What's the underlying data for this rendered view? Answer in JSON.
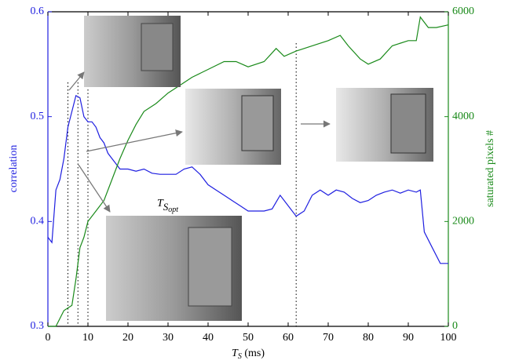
{
  "chart_data": {
    "type": "line",
    "xlabel": {
      "main": "T",
      "sub": "S",
      "rest": " (ms)"
    },
    "ylabel": "correlation",
    "y2label": "saturated pixels #",
    "annotation": {
      "main": "T",
      "sub": "S",
      "subsub": "opt"
    },
    "xlim": [
      0,
      100
    ],
    "xticks": [
      0,
      10,
      20,
      30,
      40,
      50,
      60,
      70,
      80,
      90,
      100
    ],
    "ylim": [
      0.3,
      0.6
    ],
    "yticks": [
      0.3,
      0.4,
      0.5,
      0.6
    ],
    "y2lim": [
      0,
      6000
    ],
    "y2ticks": [
      0,
      2000,
      4000,
      6000
    ],
    "vlines": [
      5,
      7.5,
      10,
      62
    ],
    "series": [
      {
        "name": "correlation",
        "color": "#1f1fe0",
        "x": [
          0,
          1,
          2,
          3,
          4,
          5,
          6,
          7,
          8,
          9,
          10,
          11,
          12,
          13,
          14,
          15,
          16,
          17,
          18,
          20,
          22,
          24,
          26,
          28,
          30,
          32,
          34,
          36,
          38,
          40,
          42,
          44,
          46,
          48,
          50,
          52,
          54,
          56,
          58,
          60,
          62,
          64,
          66,
          68,
          70,
          72,
          74,
          76,
          78,
          80,
          82,
          84,
          86,
          88,
          90,
          92,
          93,
          94,
          96,
          98,
          100
        ],
        "values": [
          0.385,
          0.38,
          0.43,
          0.44,
          0.46,
          0.49,
          0.505,
          0.52,
          0.518,
          0.5,
          0.495,
          0.495,
          0.49,
          0.48,
          0.475,
          0.465,
          0.46,
          0.455,
          0.45,
          0.45,
          0.448,
          0.45,
          0.446,
          0.445,
          0.445,
          0.445,
          0.45,
          0.452,
          0.445,
          0.435,
          0.43,
          0.425,
          0.42,
          0.415,
          0.41,
          0.41,
          0.41,
          0.412,
          0.425,
          0.415,
          0.405,
          0.41,
          0.425,
          0.43,
          0.425,
          0.43,
          0.428,
          0.422,
          0.418,
          0.42,
          0.425,
          0.428,
          0.43,
          0.427,
          0.43,
          0.428,
          0.43,
          0.39,
          0.375,
          0.36,
          0.36
        ]
      },
      {
        "name": "saturated pixels #",
        "color": "#1a8a1a",
        "axis": "y2",
        "x": [
          0,
          2,
          4,
          6,
          7,
          8,
          9,
          10,
          12,
          14,
          16,
          18,
          20,
          22,
          24,
          27,
          30,
          33,
          36,
          40,
          44,
          47,
          50,
          54,
          57,
          59,
          62,
          66,
          70,
          73,
          75,
          78,
          80,
          83,
          86,
          90,
          92,
          93,
          95,
          97,
          100
        ],
        "values": [
          0,
          0,
          300,
          400,
          900,
          1500,
          1700,
          2000,
          2200,
          2400,
          2800,
          3200,
          3550,
          3850,
          4100,
          4250,
          4450,
          4600,
          4750,
          4900,
          5050,
          5050,
          4950,
          5050,
          5300,
          5150,
          5250,
          5350,
          5450,
          5550,
          5350,
          5100,
          5000,
          5100,
          5350,
          5450,
          5450,
          5900,
          5700,
          5700,
          5750
        ]
      }
    ]
  }
}
